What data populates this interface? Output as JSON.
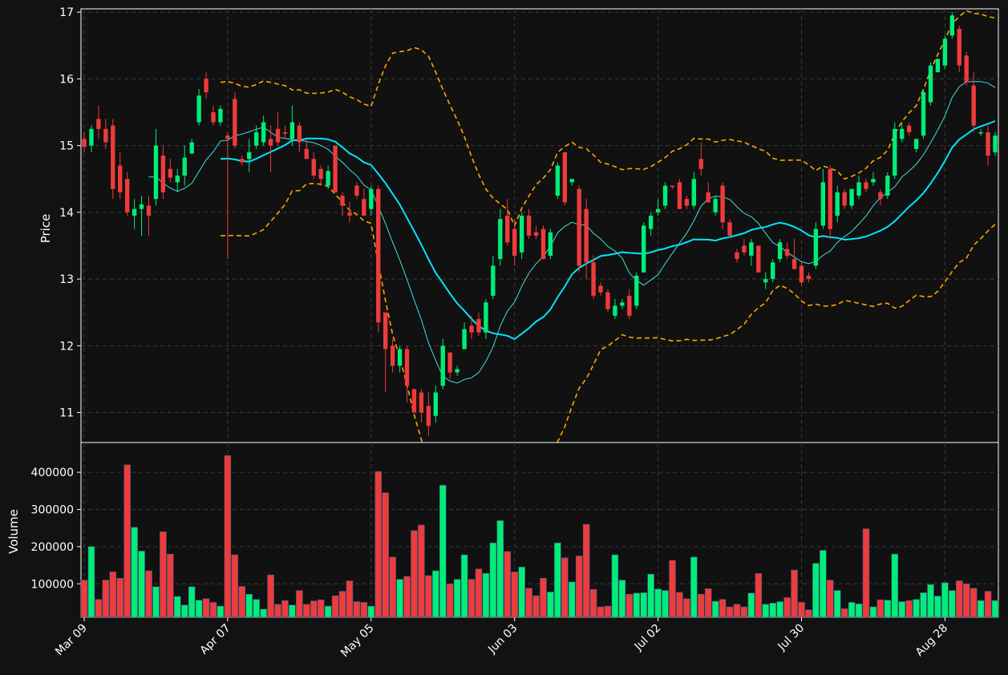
{
  "colors": {
    "background": "#121212",
    "panel": "#111111",
    "grid": "#3a3a3a",
    "up": "#00ee77",
    "down": "#ee3b3b",
    "ma_fast": "#40e0e0",
    "ma_slow": "#00e5ff",
    "bollinger": "#ffa500",
    "axis": "#ffffff"
  },
  "chart_data": {
    "type": "candlestick",
    "price_panel": {
      "ylabel": "Price",
      "ylim": [
        10.55,
        17.05
      ],
      "yticks": [
        11,
        12,
        13,
        14,
        15,
        16,
        17
      ],
      "grid": true
    },
    "volume_panel": {
      "ylabel": "Volume",
      "ylim": [
        10000,
        480000
      ],
      "yticks": [
        100000,
        200000,
        300000,
        400000
      ],
      "grid": true
    },
    "x_tick_labels": [
      {
        "i": 0,
        "label": "Mar 09"
      },
      {
        "i": 20,
        "label": "Apr 07"
      },
      {
        "i": 40,
        "label": "May 05"
      },
      {
        "i": 60,
        "label": "Jun 03"
      },
      {
        "i": 80,
        "label": "Jul 02"
      },
      {
        "i": 100,
        "label": "Jul 30"
      },
      {
        "i": 120,
        "label": "Aug 28"
      }
    ],
    "bars": [
      [
        15.1,
        15.2,
        14.9,
        14.98,
        110000
      ],
      [
        15.0,
        15.3,
        14.9,
        15.25,
        200000
      ],
      [
        15.4,
        15.6,
        15.1,
        15.25,
        58000
      ],
      [
        15.25,
        15.4,
        14.95,
        15.05,
        110000
      ],
      [
        15.3,
        15.4,
        14.2,
        14.35,
        132000
      ],
      [
        14.7,
        14.9,
        14.2,
        14.3,
        115000
      ],
      [
        14.5,
        14.6,
        13.95,
        14.0,
        420000
      ],
      [
        13.95,
        14.2,
        13.75,
        14.05,
        252000
      ],
      [
        14.05,
        14.25,
        13.65,
        14.12,
        188000
      ],
      [
        14.1,
        14.25,
        13.65,
        13.95,
        135000
      ],
      [
        14.2,
        15.25,
        14.1,
        15.0,
        92000
      ],
      [
        14.85,
        15.0,
        14.2,
        14.3,
        240000
      ],
      [
        14.65,
        14.8,
        14.45,
        14.52,
        180000
      ],
      [
        14.45,
        14.65,
        14.3,
        14.55,
        66000
      ],
      [
        14.55,
        15.0,
        14.4,
        14.82,
        43000
      ],
      [
        14.88,
        15.1,
        14.9,
        15.05,
        92000
      ],
      [
        15.35,
        15.85,
        15.3,
        15.75,
        56000
      ],
      [
        16.0,
        16.1,
        15.7,
        15.8,
        60000
      ],
      [
        15.5,
        15.6,
        15.3,
        15.35,
        50000
      ],
      [
        15.35,
        15.6,
        15.3,
        15.55,
        40000
      ],
      [
        15.15,
        15.2,
        13.3,
        15.1,
        445000
      ],
      [
        15.7,
        15.8,
        14.95,
        15.0,
        178000
      ],
      [
        14.8,
        14.85,
        14.7,
        14.75,
        93000
      ],
      [
        14.8,
        15.1,
        14.6,
        14.9,
        72000
      ],
      [
        15.0,
        15.3,
        14.95,
        15.2,
        58000
      ],
      [
        15.05,
        15.45,
        15.0,
        15.35,
        32000
      ],
      [
        15.1,
        15.3,
        14.6,
        15.0,
        124000
      ],
      [
        15.25,
        15.5,
        15.0,
        15.05,
        45000
      ],
      [
        15.2,
        15.3,
        15.1,
        15.18,
        55000
      ],
      [
        15.1,
        15.6,
        15.0,
        15.35,
        43000
      ],
      [
        15.3,
        15.35,
        14.9,
        15.05,
        82000
      ],
      [
        14.95,
        15.1,
        14.8,
        14.8,
        45000
      ],
      [
        14.8,
        14.9,
        14.5,
        14.55,
        54000
      ],
      [
        14.65,
        14.7,
        14.4,
        14.5,
        57000
      ],
      [
        14.4,
        14.7,
        14.35,
        14.62,
        40000
      ],
      [
        15.0,
        15.0,
        14.3,
        14.3,
        68000
      ],
      [
        14.25,
        14.3,
        13.95,
        14.1,
        80000
      ],
      [
        14.0,
        14.15,
        13.85,
        13.95,
        108000
      ],
      [
        14.4,
        14.45,
        14.2,
        14.25,
        52000
      ],
      [
        14.2,
        14.35,
        13.95,
        13.95,
        50000
      ],
      [
        14.05,
        14.4,
        13.95,
        14.35,
        40000
      ],
      [
        14.35,
        14.4,
        12.2,
        12.35,
        402000
      ],
      [
        12.5,
        12.5,
        11.3,
        11.95,
        345000
      ],
      [
        12.0,
        12.1,
        11.6,
        11.7,
        172000
      ],
      [
        11.7,
        12.0,
        11.6,
        11.95,
        112000
      ],
      [
        11.95,
        12.0,
        11.15,
        11.4,
        120000
      ],
      [
        11.35,
        11.35,
        11.05,
        11.0,
        243000
      ],
      [
        11.3,
        11.35,
        10.85,
        11.0,
        258000
      ],
      [
        11.1,
        11.3,
        10.65,
        10.8,
        122000
      ],
      [
        10.95,
        11.4,
        10.85,
        11.3,
        135000
      ],
      [
        11.4,
        12.1,
        11.35,
        12.0,
        365000
      ],
      [
        11.9,
        11.9,
        11.5,
        11.6,
        100000
      ],
      [
        11.6,
        11.7,
        11.55,
        11.65,
        112000
      ],
      [
        11.95,
        12.35,
        11.95,
        12.25,
        178000
      ],
      [
        12.3,
        12.45,
        12.1,
        12.2,
        112000
      ],
      [
        12.4,
        12.5,
        12.15,
        12.2,
        140000
      ],
      [
        12.2,
        12.7,
        12.1,
        12.65,
        128000
      ],
      [
        12.75,
        13.35,
        12.7,
        13.2,
        210000
      ],
      [
        13.3,
        14.05,
        13.2,
        13.9,
        270000
      ],
      [
        13.95,
        14.2,
        13.5,
        13.55,
        187000
      ],
      [
        13.75,
        13.9,
        13.2,
        13.35,
        132000
      ],
      [
        13.4,
        14.0,
        13.3,
        13.95,
        145000
      ],
      [
        13.95,
        14.05,
        13.6,
        13.65,
        88000
      ],
      [
        13.7,
        13.8,
        13.6,
        13.65,
        68000
      ],
      [
        13.75,
        13.8,
        13.3,
        13.3,
        115000
      ],
      [
        13.35,
        13.75,
        13.3,
        13.7,
        78000
      ],
      [
        14.25,
        14.75,
        14.2,
        14.7,
        210000
      ],
      [
        14.9,
        14.9,
        14.1,
        14.15,
        170000
      ],
      [
        14.45,
        14.5,
        14.4,
        14.5,
        105000
      ],
      [
        14.35,
        14.4,
        13.1,
        13.2,
        175000
      ],
      [
        14.05,
        14.2,
        13.0,
        13.25,
        260000
      ],
      [
        13.25,
        13.35,
        12.7,
        12.75,
        85000
      ],
      [
        12.9,
        12.95,
        12.75,
        12.8,
        38000
      ],
      [
        12.8,
        12.85,
        12.5,
        12.55,
        40000
      ],
      [
        12.45,
        12.7,
        12.4,
        12.6,
        178000
      ],
      [
        12.6,
        12.7,
        12.55,
        12.65,
        110000
      ],
      [
        12.75,
        12.85,
        12.4,
        12.45,
        72000
      ],
      [
        12.6,
        13.1,
        12.55,
        13.05,
        75000
      ],
      [
        13.1,
        13.85,
        13.1,
        13.8,
        76000
      ],
      [
        13.75,
        14.0,
        13.65,
        13.95,
        126000
      ],
      [
        14.0,
        14.2,
        13.95,
        14.05,
        86000
      ],
      [
        14.1,
        14.45,
        14.05,
        14.4,
        82000
      ],
      [
        14.4,
        14.4,
        14.35,
        14.38,
        163000
      ],
      [
        14.45,
        14.5,
        14.05,
        14.05,
        77000
      ],
      [
        14.2,
        14.25,
        14.05,
        14.1,
        60000
      ],
      [
        14.1,
        14.6,
        14.05,
        14.5,
        172000
      ],
      [
        14.8,
        15.05,
        14.55,
        14.65,
        72000
      ],
      [
        14.3,
        14.45,
        14.15,
        14.15,
        87000
      ],
      [
        14.0,
        14.25,
        13.95,
        14.2,
        53000
      ],
      [
        14.4,
        14.45,
        13.75,
        13.85,
        58000
      ],
      [
        13.85,
        13.9,
        13.65,
        13.65,
        38000
      ],
      [
        13.4,
        13.45,
        13.25,
        13.3,
        45000
      ],
      [
        13.5,
        13.6,
        13.35,
        13.4,
        38000
      ],
      [
        13.35,
        13.6,
        13.2,
        13.55,
        75000
      ],
      [
        13.5,
        13.5,
        13.1,
        13.1,
        128000
      ],
      [
        12.95,
        13.1,
        12.85,
        13.0,
        45000
      ],
      [
        13.0,
        13.3,
        12.95,
        13.25,
        48000
      ],
      [
        13.3,
        13.6,
        13.25,
        13.55,
        52000
      ],
      [
        13.45,
        13.55,
        13.3,
        13.35,
        63000
      ],
      [
        13.3,
        13.6,
        13.15,
        13.15,
        137000
      ],
      [
        13.2,
        13.25,
        12.9,
        12.95,
        50000
      ],
      [
        13.05,
        13.1,
        12.95,
        13.0,
        30000
      ],
      [
        13.2,
        13.85,
        13.15,
        13.75,
        155000
      ],
      [
        13.8,
        14.65,
        13.75,
        14.45,
        190000
      ],
      [
        14.65,
        14.7,
        13.6,
        13.75,
        110000
      ],
      [
        13.95,
        14.4,
        13.85,
        14.3,
        82000
      ],
      [
        14.3,
        14.35,
        14.05,
        14.1,
        33000
      ],
      [
        14.1,
        14.35,
        14.05,
        14.35,
        50000
      ],
      [
        14.25,
        14.55,
        14.2,
        14.45,
        46000
      ],
      [
        14.45,
        14.5,
        14.3,
        14.35,
        248000
      ],
      [
        14.45,
        14.6,
        14.4,
        14.5,
        38000
      ],
      [
        14.3,
        14.35,
        14.1,
        14.2,
        57000
      ],
      [
        14.25,
        14.6,
        14.2,
        14.55,
        56000
      ],
      [
        14.55,
        15.35,
        14.5,
        15.25,
        180000
      ],
      [
        15.1,
        15.35,
        15.05,
        15.25,
        52000
      ],
      [
        15.3,
        15.35,
        15.15,
        15.2,
        55000
      ],
      [
        14.95,
        15.1,
        14.9,
        15.1,
        58000
      ],
      [
        15.15,
        15.85,
        15.1,
        15.8,
        76000
      ],
      [
        15.65,
        16.25,
        15.6,
        16.2,
        98000
      ],
      [
        16.1,
        16.3,
        16.1,
        16.3,
        67000
      ],
      [
        16.2,
        16.65,
        16.15,
        16.6,
        103000
      ],
      [
        16.65,
        17.0,
        16.6,
        16.95,
        82000
      ],
      [
        16.75,
        16.8,
        16.1,
        16.2,
        108000
      ],
      [
        16.35,
        16.4,
        15.9,
        15.95,
        100000
      ],
      [
        15.9,
        16.1,
        15.2,
        15.3,
        88000
      ],
      [
        15.2,
        15.25,
        15.15,
        15.2,
        55000
      ],
      [
        15.2,
        15.3,
        14.7,
        14.85,
        80000
      ],
      [
        14.9,
        15.2,
        14.85,
        15.15,
        55000
      ]
    ]
  }
}
